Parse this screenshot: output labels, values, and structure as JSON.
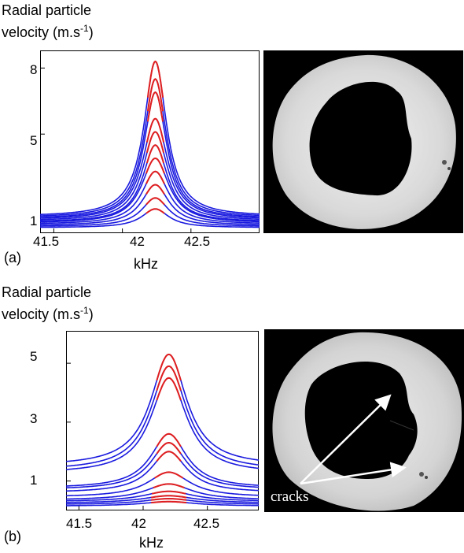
{
  "panels": [
    {
      "label": "(a)",
      "y_label_line1": "Radial particle",
      "y_label_line2_prefix": "velocity (m.s",
      "y_label_sup": "-1",
      "y_label_line2_suffix": ")",
      "x_label": "kHz",
      "x_ticks": [
        "41.5",
        "42",
        "42.5"
      ],
      "y_ticks": [
        "1",
        "5",
        "8"
      ],
      "photo_annotation": ""
    },
    {
      "label": "(b)",
      "y_label_line1": "Radial particle",
      "y_label_line2_prefix": "velocity (m.s",
      "y_label_sup": "-1",
      "y_label_line2_suffix": ")",
      "x_label": "kHz",
      "x_ticks": [
        "41.5",
        "42",
        "42.5"
      ],
      "y_ticks": [
        "1",
        "3",
        "5"
      ],
      "photo_annotation": "cracks"
    }
  ],
  "chart_data": [
    {
      "type": "line",
      "xlabel": "kHz",
      "ylabel": "Radial particle velocity (m.s-1)",
      "xlim": [
        41.4,
        43.0
      ],
      "ylim": [
        0.5,
        8.8
      ],
      "x_ticks": [
        41.5,
        42,
        42.5
      ],
      "y_ticks": [
        1,
        5,
        8
      ],
      "center": 42.24,
      "series": [
        {
          "peak": 8.3,
          "base": 1.25,
          "hw": 0.1
        },
        {
          "peak": 7.5,
          "base": 1.2,
          "hw": 0.1
        },
        {
          "peak": 6.9,
          "base": 1.15,
          "hw": 0.1
        },
        {
          "peak": 5.7,
          "base": 1.1,
          "hw": 0.11
        },
        {
          "peak": 5.1,
          "base": 1.05,
          "hw": 0.11
        },
        {
          "peak": 4.5,
          "base": 1.0,
          "hw": 0.11
        },
        {
          "peak": 3.9,
          "base": 0.95,
          "hw": 0.12
        },
        {
          "peak": 3.3,
          "base": 0.9,
          "hw": 0.12
        },
        {
          "peak": 2.7,
          "base": 0.85,
          "hw": 0.12
        },
        {
          "peak": 2.1,
          "base": 0.8,
          "hw": 0.12
        },
        {
          "peak": 1.6,
          "base": 0.75,
          "hw": 0.12
        }
      ],
      "line_color": "#1a1adf",
      "peak_color": "#e01e1e",
      "grid": false
    },
    {
      "type": "line",
      "xlabel": "kHz",
      "ylabel": "Radial particle velocity (m.s-1)",
      "xlim": [
        41.4,
        42.9
      ],
      "ylim": [
        0.0,
        6.1
      ],
      "x_ticks": [
        41.5,
        42,
        42.5
      ],
      "y_ticks": [
        1,
        3,
        5
      ],
      "center": 42.2,
      "series": [
        {
          "peak": 5.3,
          "base": 1.5,
          "hw": 0.17
        },
        {
          "peak": 4.9,
          "base": 1.35,
          "hw": 0.17
        },
        {
          "peak": 4.5,
          "base": 1.25,
          "hw": 0.17
        },
        {
          "peak": 2.6,
          "base": 0.75,
          "hw": 0.17
        },
        {
          "peak": 2.3,
          "base": 0.7,
          "hw": 0.17
        },
        {
          "peak": 2.0,
          "base": 0.6,
          "hw": 0.17
        },
        {
          "peak": 1.3,
          "base": 0.45,
          "hw": 0.2
        },
        {
          "peak": 0.9,
          "base": 0.35,
          "hw": 0.22
        },
        {
          "peak": 0.65,
          "base": 0.3,
          "hw": 0.24
        },
        {
          "peak": 0.5,
          "base": 0.25,
          "hw": 0.25
        },
        {
          "peak": 0.4,
          "base": 0.2,
          "hw": 0.25
        },
        {
          "peak": 0.3,
          "base": 0.15,
          "hw": 0.25
        }
      ],
      "line_color": "#1a1adf",
      "peak_color": "#e01e1e",
      "grid": false
    }
  ]
}
